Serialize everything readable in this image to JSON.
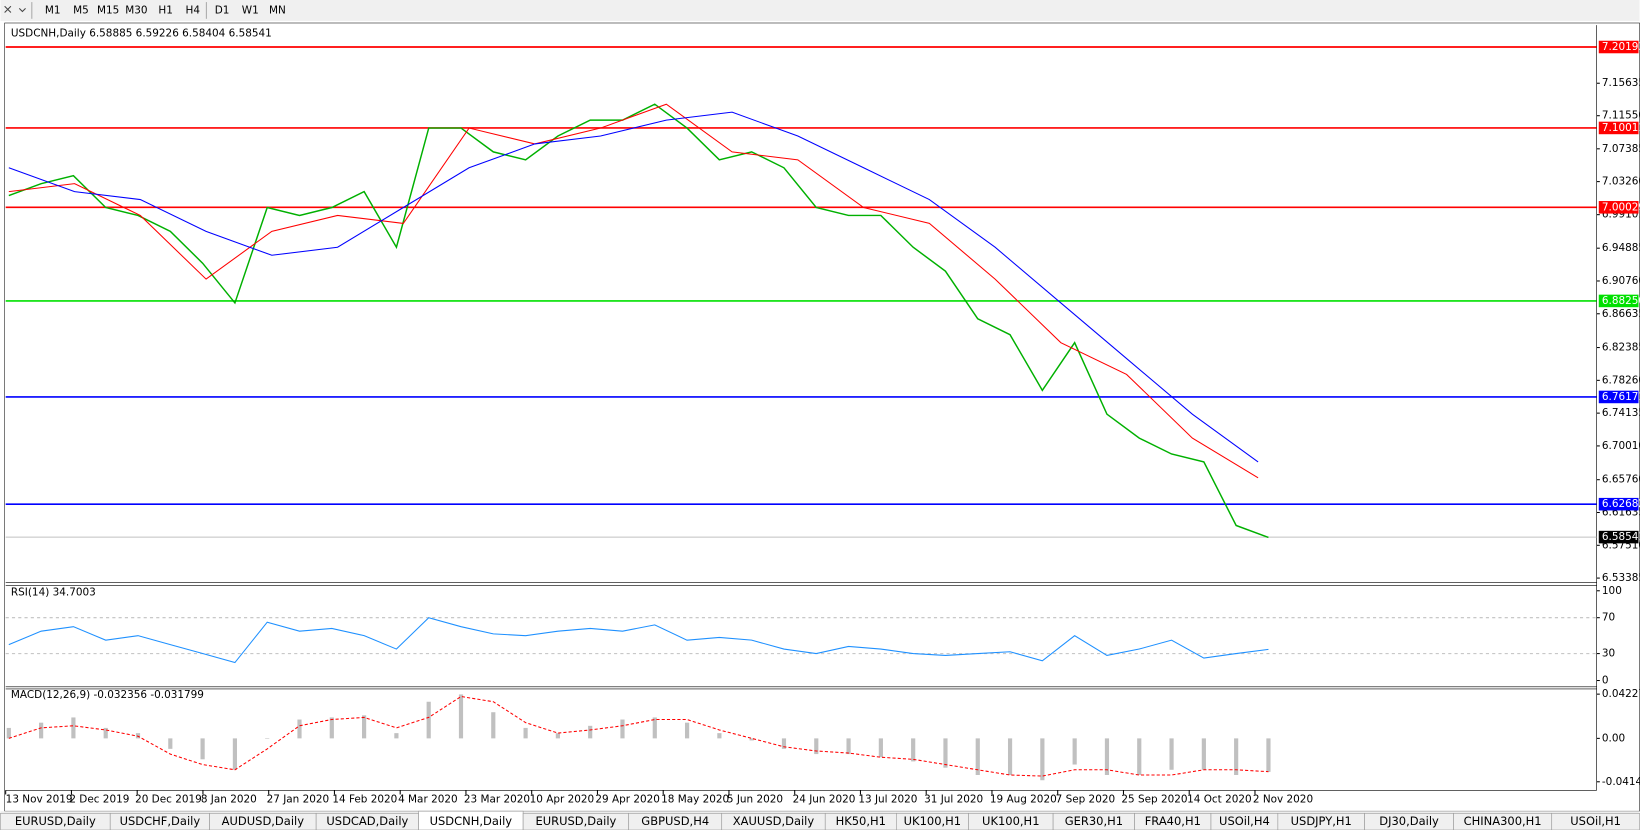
{
  "toolbar": {
    "timeframes": [
      "M1",
      "M5",
      "M15",
      "M30",
      "H1",
      "H4",
      "D1",
      "W1",
      "MN"
    ]
  },
  "chart": {
    "header": "USDCNH,Daily  6.58885 6.59226 6.58404 6.58541",
    "ylim": [
      6.5286,
      7.2295
    ],
    "ticks": [
      7.15635,
      {
        "value": 7.1155,
        "label": "7.11550"
      },
      7.07385,
      {
        "value": 7.0326,
        "label": "7.03260"
      },
      6.99101,
      6.94885,
      {
        "value": 6.9076,
        "label": "6.90760"
      },
      6.86635,
      6.82385,
      {
        "value": 6.7826,
        "label": "6.78260"
      },
      6.74135,
      {
        "value": 6.7001,
        "label": "6.70010"
      },
      {
        "value": 6.6576,
        "label": "6.65760"
      },
      6.61635,
      {
        "value": 6.5751,
        "label": "6.57510"
      },
      6.53385
    ],
    "levels": [
      {
        "price": 7.20193,
        "color": "#ff0000"
      },
      {
        "price": 7.10011,
        "color": "#ff0000"
      },
      {
        "price": 7.00029,
        "color": "#ff0000"
      },
      {
        "price": 6.8825,
        "label": "6.88250",
        "color": "#00e000"
      },
      {
        "price": 6.76171,
        "color": "#0000ff"
      },
      {
        "price": 6.62682,
        "color": "#0000ff"
      }
    ],
    "current_price": 6.58541,
    "closes": {
      "color": "#00b000",
      "values": [
        7.015,
        7.03,
        7.04,
        7.0,
        6.99,
        6.97,
        6.93,
        6.88,
        7.0,
        6.99,
        7.0,
        7.02,
        6.95,
        7.1,
        7.1,
        7.07,
        7.06,
        7.09,
        7.11,
        7.11,
        7.13,
        7.1,
        7.06,
        7.07,
        7.05,
        7.0,
        6.99,
        6.99,
        6.95,
        6.92,
        6.86,
        6.84,
        6.77,
        6.83,
        6.74,
        6.71,
        6.69,
        6.68,
        6.6,
        6.585
      ]
    },
    "ma_fast": {
      "color": "#ff0000",
      "values": [
        7.02,
        7.03,
        6.99,
        6.91,
        6.97,
        6.99,
        6.98,
        7.1,
        7.08,
        7.1,
        7.13,
        7.07,
        7.06,
        7.0,
        6.98,
        6.91,
        6.83,
        6.79,
        6.71,
        6.66
      ]
    },
    "ma_slow": {
      "color": "#0000ff",
      "values": [
        7.05,
        7.02,
        7.01,
        6.97,
        6.94,
        6.95,
        7.0,
        7.05,
        7.08,
        7.09,
        7.11,
        7.12,
        7.09,
        7.05,
        7.01,
        6.95,
        6.88,
        6.81,
        6.74,
        6.68
      ]
    },
    "dates": [
      "13 Nov 2019",
      "2 Dec 2019",
      "20 Dec 2019",
      "8 Jan 2020",
      "27 Jan 2020",
      "14 Feb 2020",
      "4 Mar 2020",
      "23 Mar 2020",
      "10 Apr 2020",
      "29 Apr 2020",
      "18 May 2020",
      "5 Jun 2020",
      "24 Jun 2020",
      "13 Jul 2020",
      "31 Jul 2020",
      "19 Aug 2020",
      "7 Sep 2020",
      "25 Sep 2020",
      "14 Oct 2020",
      "2 Nov 2020"
    ]
  },
  "rsi": {
    "header": "RSI(14) 34.7003",
    "ylim": [
      -7,
      106
    ],
    "ticks": [
      100,
      70,
      30,
      0
    ],
    "levels": [
      70,
      30
    ],
    "color": "#1e90ff",
    "values": [
      40,
      55,
      60,
      45,
      50,
      40,
      30,
      20,
      65,
      55,
      58,
      50,
      35,
      70,
      60,
      52,
      50,
      55,
      58,
      55,
      62,
      45,
      48,
      45,
      35,
      30,
      38,
      35,
      30,
      28,
      30,
      32,
      22,
      50,
      28,
      35,
      45,
      25,
      30,
      34.7
    ]
  },
  "macd": {
    "header": "MACD(12,26,9) -0.032356 -0.031799",
    "ylim": [
      -0.0496,
      0.0473
    ],
    "ticks": [
      0.04227,
      {
        "value": 0,
        "label": "0.00"
      },
      -0.04148
    ],
    "histogram": {
      "color": "#c0c0c0",
      "values": [
        0.01,
        0.015,
        0.02,
        0.01,
        0.005,
        -0.01,
        -0.02,
        -0.03,
        0.0,
        0.018,
        0.02,
        0.022,
        0.005,
        0.035,
        0.042,
        0.025,
        0.01,
        0.005,
        0.012,
        0.018,
        0.02,
        0.015,
        0.005,
        -0.002,
        -0.01,
        -0.015,
        -0.015,
        -0.018,
        -0.022,
        -0.028,
        -0.035,
        -0.035,
        -0.04,
        -0.025,
        -0.035,
        -0.035,
        -0.03,
        -0.03,
        -0.035,
        -0.032
      ]
    },
    "signal": {
      "color": "#ff0000",
      "values": [
        0.0,
        0.01,
        0.012,
        0.008,
        0.002,
        -0.015,
        -0.025,
        -0.03,
        -0.01,
        0.012,
        0.018,
        0.02,
        0.01,
        0.02,
        0.04,
        0.035,
        0.015,
        0.005,
        0.008,
        0.012,
        0.018,
        0.018,
        0.008,
        0.0,
        -0.008,
        -0.012,
        -0.014,
        -0.018,
        -0.02,
        -0.025,
        -0.03,
        -0.035,
        -0.036,
        -0.03,
        -0.03,
        -0.035,
        -0.035,
        -0.03,
        -0.03,
        -0.0318
      ]
    }
  },
  "tabs": {
    "active": 4,
    "items": [
      "EURUSD,Daily",
      "USDCHF,Daily",
      "AUDUSD,Daily",
      "USDCAD,Daily",
      "USDCNH,Daily",
      "EURUSD,Daily",
      "GBPUSD,H4",
      "XAUUSD,Daily",
      "HK50,H1",
      "UK100,H1",
      "UK100,H1",
      "GER30,H1",
      "FRA40,H1",
      "USOil,H4",
      "USDJPY,H1",
      "DJ30,Daily",
      "CHINA300,H1",
      "USOil,H1"
    ]
  }
}
